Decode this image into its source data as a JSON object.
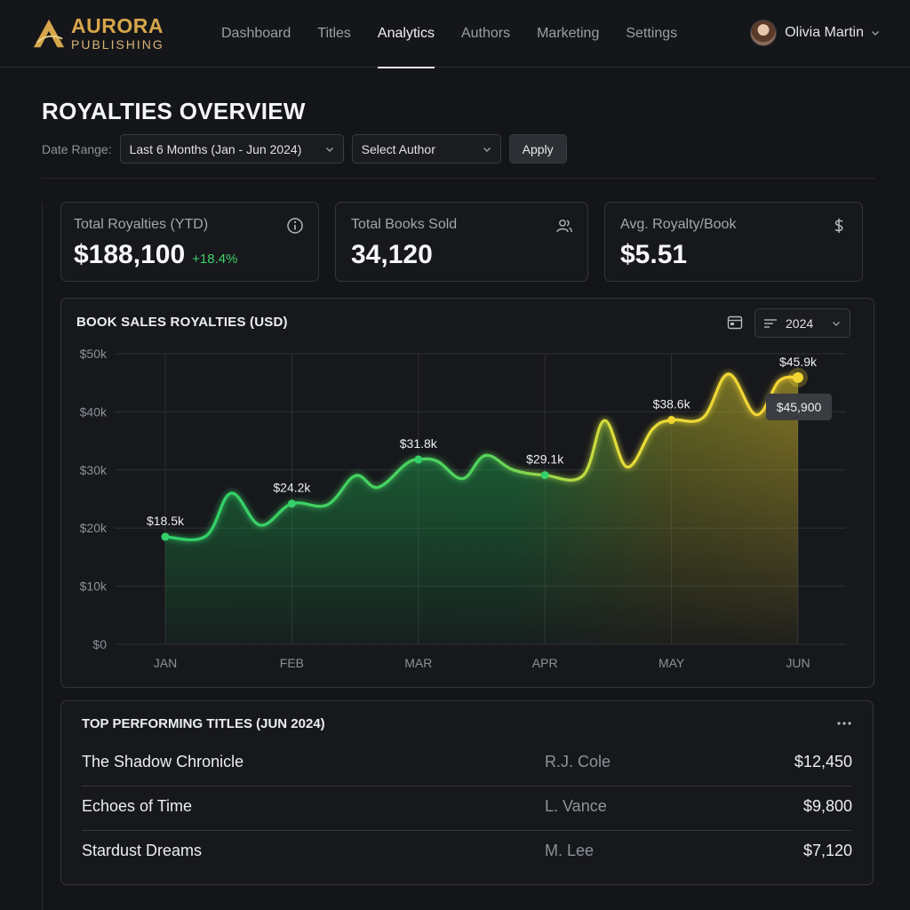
{
  "brand": {
    "name": "AURORA",
    "sub": "PUBLISHING"
  },
  "nav": {
    "items": [
      {
        "label": "Dashboard",
        "active": false
      },
      {
        "label": "Titles",
        "active": false
      },
      {
        "label": "Analytics",
        "active": true
      },
      {
        "label": "Authors",
        "active": false
      },
      {
        "label": "Marketing",
        "active": false
      },
      {
        "label": "Settings",
        "active": false
      }
    ]
  },
  "user": {
    "name": "Olivia Martin"
  },
  "header": {
    "title": "ROYALTIES OVERVIEW",
    "date_label": "Date Range:",
    "date_value": "Last 6 Months (Jan - Jun 2024)",
    "author_value": "Select Author",
    "apply_label": "Apply"
  },
  "kpis": [
    {
      "label": "Total Royalties (YTD)",
      "value": "$188,100",
      "delta": "+18.4%",
      "icon": "info-icon"
    },
    {
      "label": "Total Books Sold",
      "value": "34,120",
      "icon": "users-icon"
    },
    {
      "label": "Avg. Royalty/Book",
      "value": "$5.51",
      "icon": "dollar-icon"
    }
  ],
  "colors": {
    "green": "#35d06a",
    "yellow": "#f2d430",
    "accent": "#d6a64a"
  },
  "chart": {
    "title": "BOOK SALES ROYALTIES (USD)",
    "year": "2024",
    "tooltip": "$45,900"
  },
  "chart_data": {
    "type": "area",
    "title": "BOOK SALES ROYALTIES (USD)",
    "categories": [
      "JAN",
      "FEB",
      "MAR",
      "APR",
      "MAY",
      "JUN"
    ],
    "ylim": [
      0,
      50000
    ],
    "yticks": [
      "$0",
      "$10k",
      "$20k",
      "$30k",
      "$40k",
      "$50k"
    ],
    "yvalues": [
      0,
      10000,
      20000,
      30000,
      40000,
      50000
    ],
    "grid": true,
    "points": [
      {
        "x": 0,
        "y": 18500,
        "label": "$18.5k"
      },
      {
        "x": 0.32,
        "y": 18600
      },
      {
        "x": 0.52,
        "y": 26000
      },
      {
        "x": 0.75,
        "y": 20500
      },
      {
        "x": 1,
        "y": 24200,
        "label": "$24.2k"
      },
      {
        "x": 1.28,
        "y": 24000
      },
      {
        "x": 1.5,
        "y": 29000
      },
      {
        "x": 1.68,
        "y": 27000
      },
      {
        "x": 1.9,
        "y": 31000
      },
      {
        "x": 2,
        "y": 31800,
        "label": "$31.8k"
      },
      {
        "x": 2.15,
        "y": 31500
      },
      {
        "x": 2.35,
        "y": 28500
      },
      {
        "x": 2.53,
        "y": 32500
      },
      {
        "x": 2.75,
        "y": 30000
      },
      {
        "x": 3,
        "y": 29100,
        "label": "$29.1k"
      },
      {
        "x": 3.3,
        "y": 29000
      },
      {
        "x": 3.47,
        "y": 38500
      },
      {
        "x": 3.65,
        "y": 30500
      },
      {
        "x": 3.85,
        "y": 37000
      },
      {
        "x": 4,
        "y": 38600,
        "label": "$38.6k"
      },
      {
        "x": 4.25,
        "y": 39000
      },
      {
        "x": 4.45,
        "y": 46500
      },
      {
        "x": 4.67,
        "y": 39500
      },
      {
        "x": 4.85,
        "y": 45300
      },
      {
        "x": 5,
        "y": 45900,
        "label": "$45.9k"
      }
    ]
  },
  "table": {
    "title": "TOP PERFORMING TITLES (JUN 2024)",
    "rows": [
      {
        "title": "The Shadow Chronicle",
        "author": "R.J. Cole",
        "amount": "$12,450"
      },
      {
        "title": "Echoes of Time",
        "author": "L. Vance",
        "amount": "$9,800"
      },
      {
        "title": "Stardust Dreams",
        "author": "M. Lee",
        "amount": "$7,120"
      }
    ]
  }
}
